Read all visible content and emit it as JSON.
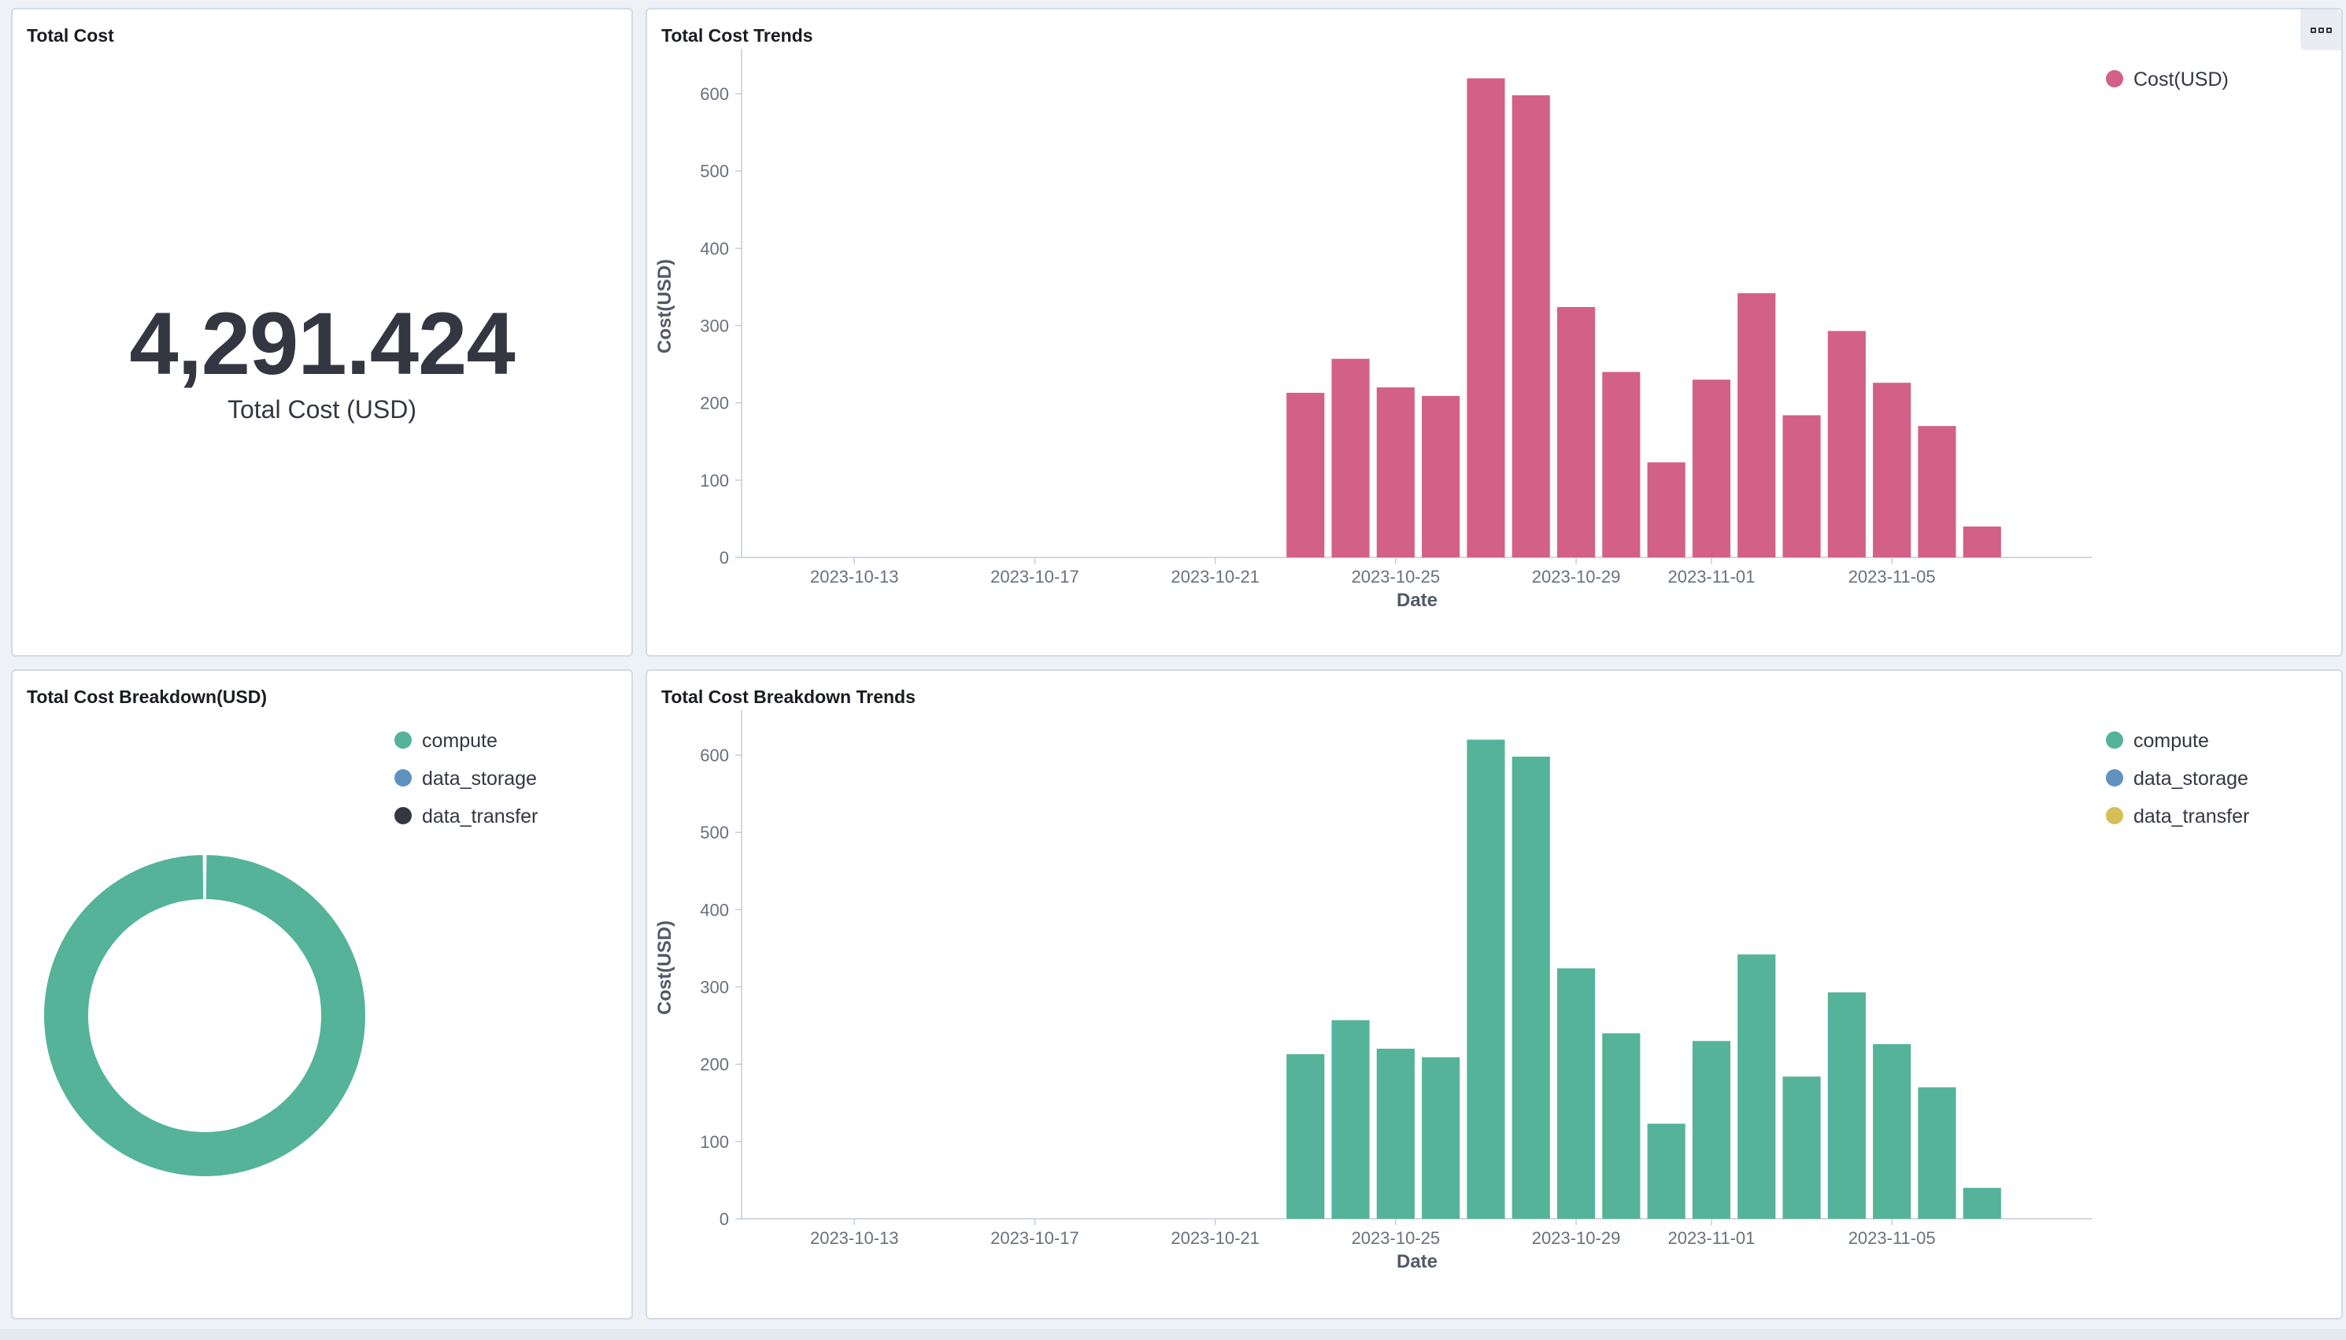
{
  "panels": {
    "total": {
      "title": "Total Cost",
      "value": "4,291.424",
      "label": "Total Cost (USD)"
    },
    "trend": {
      "title": "Total Cost Trends"
    },
    "breakdown": {
      "title": "Total Cost Breakdown(USD)"
    },
    "breakdown_trend": {
      "title": "Total Cost Breakdown Trends"
    }
  },
  "colors": {
    "cost": "#d36086",
    "compute": "#54b399",
    "data_storage": "#6092c0",
    "data_transfer_pie": "#343741",
    "data_transfer_bar": "#d6bf57"
  },
  "chart_data": [
    {
      "type": "bar",
      "title": "Total Cost Trends",
      "xlabel": "Date",
      "ylabel": "Cost(USD)",
      "ylim": [
        0,
        650
      ],
      "yticks": [
        0,
        100,
        200,
        300,
        400,
        500,
        600
      ],
      "xticks": [
        "2023-10-13",
        "2023-10-17",
        "2023-10-21",
        "2023-10-25",
        "2023-10-29",
        "2023-11-01",
        "2023-11-05"
      ],
      "legend": [
        "Cost(USD)"
      ],
      "legend_position": "top-right",
      "categories": [
        "2023-10-23",
        "2023-10-24",
        "2023-10-25",
        "2023-10-26",
        "2023-10-27",
        "2023-10-28",
        "2023-10-29",
        "2023-10-30",
        "2023-10-31",
        "2023-11-01",
        "2023-11-02",
        "2023-11-03",
        "2023-11-04",
        "2023-11-05",
        "2023-11-06",
        "2023-11-07"
      ],
      "series": [
        {
          "name": "Cost(USD)",
          "values": [
            213,
            257,
            220,
            209,
            620,
            598,
            324,
            240,
            123,
            230,
            342,
            184,
            293,
            226,
            170,
            40
          ]
        }
      ]
    },
    {
      "type": "pie",
      "title": "Total Cost Breakdown(USD)",
      "legend": [
        "compute",
        "data_storage",
        "data_transfer"
      ],
      "legend_position": "top-right",
      "categories": [
        "compute",
        "data_storage",
        "data_transfer"
      ],
      "values": [
        4291.424,
        0,
        0
      ]
    },
    {
      "type": "bar",
      "title": "Total Cost Breakdown Trends",
      "xlabel": "Date",
      "ylabel": "Cost(USD)",
      "ylim": [
        0,
        650
      ],
      "yticks": [
        0,
        100,
        200,
        300,
        400,
        500,
        600
      ],
      "xticks": [
        "2023-10-13",
        "2023-10-17",
        "2023-10-21",
        "2023-10-25",
        "2023-10-29",
        "2023-11-01",
        "2023-11-05"
      ],
      "legend": [
        "compute",
        "data_storage",
        "data_transfer"
      ],
      "legend_position": "top-right",
      "categories": [
        "2023-10-23",
        "2023-10-24",
        "2023-10-25",
        "2023-10-26",
        "2023-10-27",
        "2023-10-28",
        "2023-10-29",
        "2023-10-30",
        "2023-10-31",
        "2023-11-01",
        "2023-11-02",
        "2023-11-03",
        "2023-11-04",
        "2023-11-05",
        "2023-11-06",
        "2023-11-07"
      ],
      "series": [
        {
          "name": "compute",
          "values": [
            213,
            257,
            220,
            209,
            620,
            598,
            324,
            240,
            123,
            230,
            342,
            184,
            293,
            226,
            170,
            40
          ]
        },
        {
          "name": "data_storage",
          "values": [
            0,
            0,
            0,
            0,
            0,
            0,
            0,
            0,
            0,
            0,
            0,
            0,
            0,
            0,
            0,
            0
          ]
        },
        {
          "name": "data_transfer",
          "values": [
            0,
            0,
            0,
            0,
            0,
            0,
            0,
            0,
            0,
            0,
            0,
            0,
            0,
            0,
            0,
            0
          ]
        }
      ]
    }
  ]
}
